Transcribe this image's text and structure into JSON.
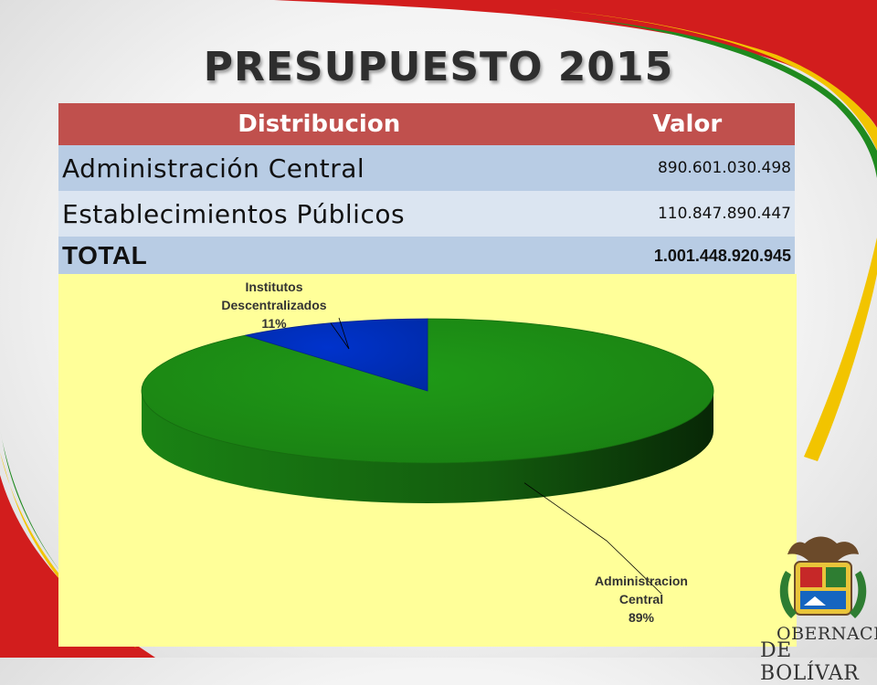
{
  "title": "PRESUPUESTO 2015",
  "table": {
    "headers": [
      "Distribucion",
      "Valor"
    ],
    "rows": [
      {
        "label": "Administración Central",
        "value": "890.601.030.498"
      },
      {
        "label": "Establecimientos Públicos",
        "value": "110.847.890.447"
      },
      {
        "label": "TOTAL",
        "value": "1.001.448.920.945"
      }
    ]
  },
  "logo": {
    "line1": "OBERNACIÓN",
    "line2": "DE BOLÍVAR"
  },
  "chart_data": {
    "type": "pie",
    "slices": [
      {
        "label_lines": [
          "Administracion",
          "Central",
          "89%"
        ],
        "value": 89,
        "color": "#1f9a17"
      },
      {
        "label_lines": [
          "Institutos",
          "Descentralizados",
          "11%"
        ],
        "value": 11,
        "color": "#0033cc"
      }
    ]
  }
}
